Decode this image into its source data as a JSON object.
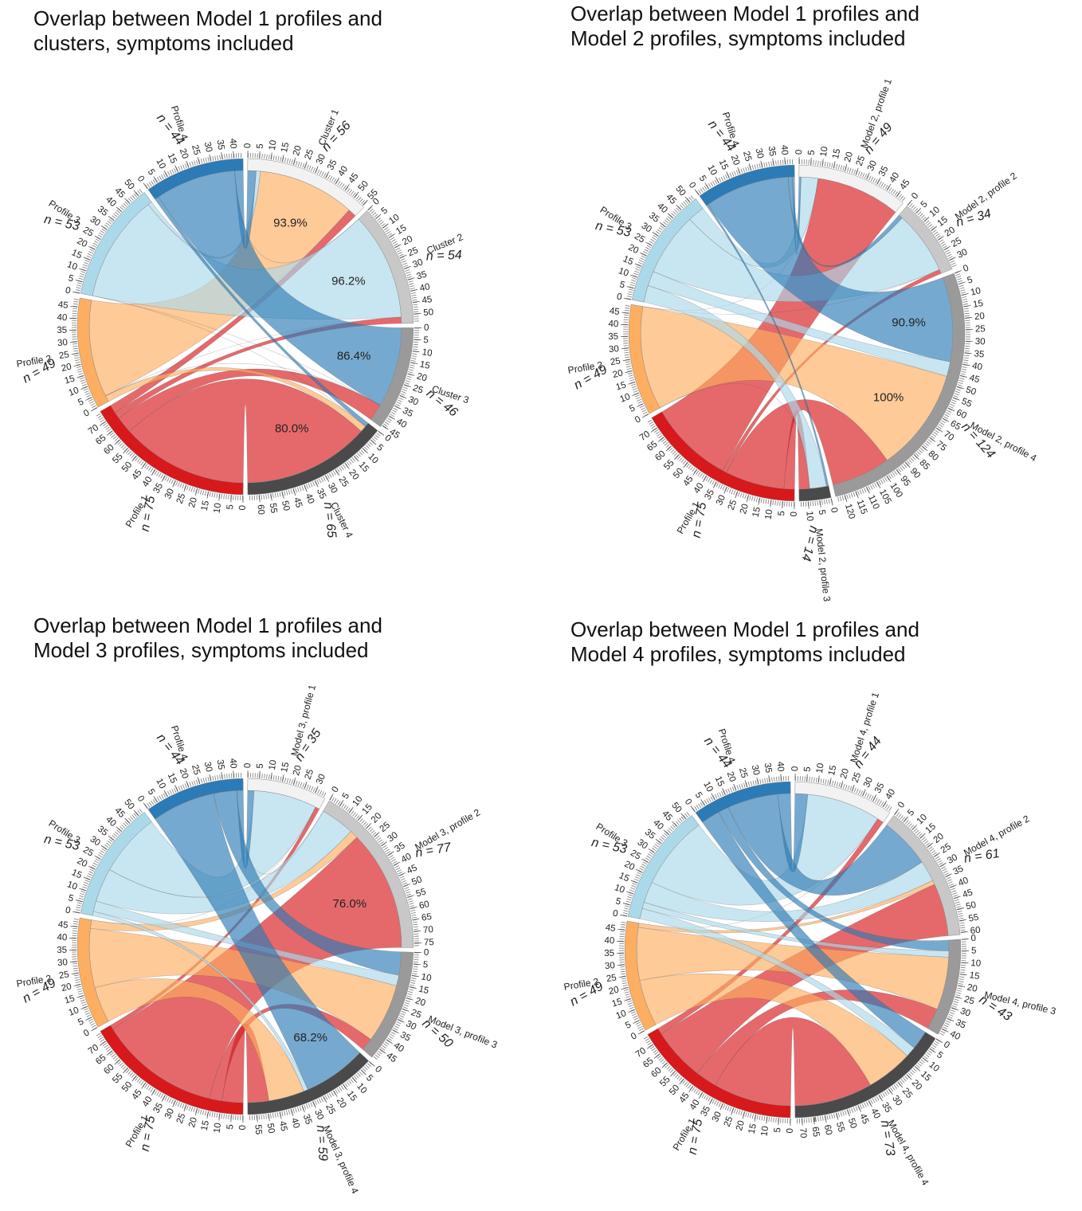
{
  "chart_data": [
    {
      "type": "chord",
      "title": "Overlap between Model 1 profiles and clusters, symptoms included",
      "rows": [
        {
          "name": "Profile 1",
          "value": 75,
          "n_label": "n = 75",
          "color": "#d7191c",
          "ticks": [
            0,
            5,
            10,
            15,
            20,
            25,
            30,
            35,
            40,
            45,
            50,
            55,
            60,
            65,
            70
          ]
        },
        {
          "name": "Profile 2",
          "value": 49,
          "n_label": "n = 49",
          "color": "#fdae61",
          "ticks": [
            0,
            5,
            10,
            15,
            20,
            25,
            30,
            35,
            40,
            45
          ]
        },
        {
          "name": "Profile 3",
          "value": 53,
          "n_label": "n = 53",
          "color": "#abd9e9",
          "ticks": [
            0,
            5,
            10,
            15,
            20,
            25,
            30,
            35,
            40,
            45,
            50
          ]
        },
        {
          "name": "Profile 4",
          "value": 44,
          "n_label": "n = 44",
          "color": "#2c7bb6",
          "ticks": [
            0,
            5,
            10,
            15,
            20,
            25,
            30,
            35,
            40
          ]
        }
      ],
      "columns": [
        {
          "name": "Cluster 1",
          "value": 56,
          "n_label": "n = 56",
          "color": "#f2f2f2",
          "ticks": [
            0,
            5,
            10,
            15,
            20,
            25,
            30,
            35,
            40,
            45,
            50,
            55
          ]
        },
        {
          "name": "Cluster 2",
          "value": 54,
          "n_label": "n = 54",
          "color": "#c8c8c8",
          "ticks": [
            0,
            5,
            10,
            15,
            20,
            25,
            30,
            35,
            40,
            45,
            50
          ]
        },
        {
          "name": "Cluster 3",
          "value": 46,
          "n_label": "n = 46",
          "color": "#9a9a9a",
          "ticks": [
            0,
            5,
            10,
            15,
            20,
            25,
            30,
            35,
            40,
            45
          ]
        },
        {
          "name": "Cluster 4",
          "value": 65,
          "n_label": "n = 65",
          "color": "#4a4a4a",
          "ticks": [
            0,
            5,
            10,
            15,
            20,
            25,
            30,
            35,
            40,
            45,
            50,
            55,
            60
          ]
        }
      ],
      "matrix": [
        [
          4,
          3,
          8,
          60
        ],
        [
          46,
          0,
          0,
          3
        ],
        [
          2,
          51,
          0,
          0
        ],
        [
          4,
          0,
          38,
          2
        ]
      ],
      "annotations": [
        {
          "text": "93.9%",
          "value": 93.9
        },
        {
          "text": "96.2%",
          "value": 96.2
        },
        {
          "text": "86.4%",
          "value": 86.4
        },
        {
          "text": "80.0%",
          "value": 80.0
        }
      ]
    },
    {
      "type": "chord",
      "title": "Overlap between Model 1 profiles and Model 2 profiles, symptoms included",
      "rows": [
        {
          "name": "Profile 1",
          "value": 75,
          "n_label": "n = 75",
          "color": "#d7191c",
          "ticks": [
            0,
            5,
            10,
            15,
            20,
            25,
            30,
            35,
            40,
            45,
            50,
            55,
            60,
            65,
            70
          ]
        },
        {
          "name": "Profile 2",
          "value": 49,
          "n_label": "n = 49",
          "color": "#fdae61",
          "ticks": [
            0,
            5,
            10,
            15,
            20,
            25,
            30,
            35,
            40,
            45
          ]
        },
        {
          "name": "Profile 3",
          "value": 53,
          "n_label": "n = 53",
          "color": "#abd9e9",
          "ticks": [
            0,
            5,
            10,
            15,
            20,
            25,
            30,
            35,
            40,
            45,
            50
          ]
        },
        {
          "name": "Profile 4",
          "value": 44,
          "n_label": "n = 44",
          "color": "#2c7bb6",
          "ticks": [
            0,
            5,
            10,
            15,
            20,
            25,
            30,
            35,
            40
          ]
        }
      ],
      "columns": [
        {
          "name": "Model 2, profile 1",
          "value": 49,
          "n_label": "n = 49",
          "color": "#f2f2f2",
          "ticks": [
            0,
            5,
            10,
            15,
            20,
            25,
            30,
            35,
            40,
            45
          ]
        },
        {
          "name": "Model 2, profile 2",
          "value": 34,
          "n_label": "n = 34",
          "color": "#c8c8c8",
          "ticks": [
            0,
            5,
            10,
            15,
            20,
            25,
            30
          ]
        },
        {
          "name": "Model 2, profile 4",
          "value": 124,
          "n_label": "n = 124",
          "color": "#9a9a9a",
          "ticks": [
            0,
            5,
            10,
            15,
            20,
            25,
            30,
            35,
            40,
            45,
            50,
            55,
            60,
            65,
            70,
            75,
            80,
            85,
            90,
            95,
            100,
            105,
            110,
            115,
            120
          ]
        },
        {
          "name": "Model 2, profile 3",
          "value": 14,
          "n_label": "n = 14",
          "color": "#4a4a4a",
          "ticks": [
            0,
            5,
            10
          ]
        }
      ],
      "matrix": [
        [
          40,
          2,
          28,
          5
        ],
        [
          0,
          0,
          49,
          0
        ],
        [
          8,
          30,
          7,
          8
        ],
        [
          1,
          2,
          40,
          1
        ]
      ],
      "annotations": [
        {
          "text": "100%",
          "value": 100
        },
        {
          "text": "90.9%",
          "value": 90.9
        }
      ]
    },
    {
      "type": "chord",
      "title": "Overlap between Model 1 profiles and Model 3 profiles, symptoms included",
      "rows": [
        {
          "name": "Profile 1",
          "value": 75,
          "n_label": "n = 75",
          "color": "#d7191c",
          "ticks": [
            0,
            5,
            10,
            15,
            20,
            25,
            30,
            35,
            40,
            45,
            50,
            55,
            60,
            65,
            70
          ]
        },
        {
          "name": "Profile 2",
          "value": 49,
          "n_label": "n = 49",
          "color": "#fdae61",
          "ticks": [
            0,
            5,
            10,
            15,
            20,
            25,
            30,
            35,
            40,
            45
          ]
        },
        {
          "name": "Profile 3",
          "value": 53,
          "n_label": "n = 53",
          "color": "#abd9e9",
          "ticks": [
            0,
            5,
            10,
            15,
            20,
            25,
            30,
            35,
            40,
            45,
            50
          ]
        },
        {
          "name": "Profile 4",
          "value": 44,
          "n_label": "n = 44",
          "color": "#2c7bb6",
          "ticks": [
            0,
            5,
            10,
            15,
            20,
            25,
            30,
            35,
            40
          ]
        }
      ],
      "columns": [
        {
          "name": "Model 3, profile 1",
          "value": 35,
          "n_label": "n = 35",
          "color": "#f2f2f2",
          "ticks": [
            0,
            5,
            10,
            15,
            20,
            25,
            30
          ]
        },
        {
          "name": "Model 3, profile 2",
          "value": 77,
          "n_label": "n = 77",
          "color": "#c8c8c8",
          "ticks": [
            0,
            5,
            10,
            15,
            20,
            25,
            30,
            35,
            40,
            45,
            50,
            55,
            60,
            65,
            70,
            75
          ]
        },
        {
          "name": "Model 3, profile 3",
          "value": 50,
          "n_label": "n = 50",
          "color": "#9a9a9a",
          "ticks": [
            0,
            5,
            10,
            15,
            20,
            25,
            30,
            35,
            40,
            45
          ]
        },
        {
          "name": "Model 3, profile 4",
          "value": 59,
          "n_label": "n = 59",
          "color": "#4a4a4a",
          "ticks": [
            0,
            5,
            10,
            15,
            20,
            25,
            30,
            35,
            40,
            45,
            50,
            55
          ]
        }
      ],
      "matrix": [
        [
          2,
          57,
          6,
          10
        ],
        [
          0,
          4,
          28,
          17
        ],
        [
          30,
          16,
          5,
          2
        ],
        [
          3,
          0,
          11,
          30
        ]
      ],
      "annotations": [
        {
          "text": "76.0%",
          "value": 76.0
        },
        {
          "text": "68.2%",
          "value": 68.2
        }
      ]
    },
    {
      "type": "chord",
      "title": "Overlap between Model 1 profiles and Model 4 profiles, symptoms included",
      "rows": [
        {
          "name": "Profile 1",
          "value": 75,
          "n_label": "n = 75",
          "color": "#d7191c",
          "ticks": [
            0,
            5,
            10,
            15,
            20,
            25,
            30,
            35,
            40,
            45,
            50,
            55,
            60,
            65,
            70
          ]
        },
        {
          "name": "Profile 2",
          "value": 49,
          "n_label": "n = 49",
          "color": "#fdae61",
          "ticks": [
            0,
            5,
            10,
            15,
            20,
            25,
            30,
            35,
            40,
            45
          ]
        },
        {
          "name": "Profile 3",
          "value": 53,
          "n_label": "n = 53",
          "color": "#abd9e9",
          "ticks": [
            0,
            5,
            10,
            15,
            20,
            25,
            30,
            35,
            40,
            45,
            50
          ]
        },
        {
          "name": "Profile 4",
          "value": 44,
          "n_label": "n = 44",
          "color": "#2c7bb6",
          "ticks": [
            0,
            5,
            10,
            15,
            20,
            25,
            30,
            35,
            40
          ]
        }
      ],
      "columns": [
        {
          "name": "Model 4, profile 1",
          "value": 44,
          "n_label": "n = 44",
          "color": "#f2f2f2",
          "ticks": [
            0,
            5,
            10,
            15,
            20,
            25,
            30,
            35,
            40
          ]
        },
        {
          "name": "Model 4, profile 2",
          "value": 61,
          "n_label": "n = 61",
          "color": "#c8c8c8",
          "ticks": [
            0,
            5,
            10,
            15,
            20,
            25,
            30,
            35,
            40,
            45,
            50,
            55,
            60
          ]
        },
        {
          "name": "Model 4, profile 3",
          "value": 43,
          "n_label": "n = 43",
          "color": "#9a9a9a",
          "ticks": [
            0,
            5,
            10,
            15,
            20,
            25,
            30,
            35,
            40
          ]
        },
        {
          "name": "Model 4, profile 4",
          "value": 73,
          "n_label": "n = 73",
          "color": "#4a4a4a",
          "ticks": [
            0,
            5,
            10,
            15,
            20,
            25,
            30,
            35,
            40,
            45,
            50,
            55,
            60,
            65,
            70
          ]
        }
      ],
      "matrix": [
        [
          3,
          25,
          10,
          37
        ],
        [
          0,
          2,
          25,
          22
        ],
        [
          35,
          10,
          3,
          5
        ],
        [
          6,
          24,
          5,
          9
        ]
      ],
      "annotations": []
    }
  ]
}
